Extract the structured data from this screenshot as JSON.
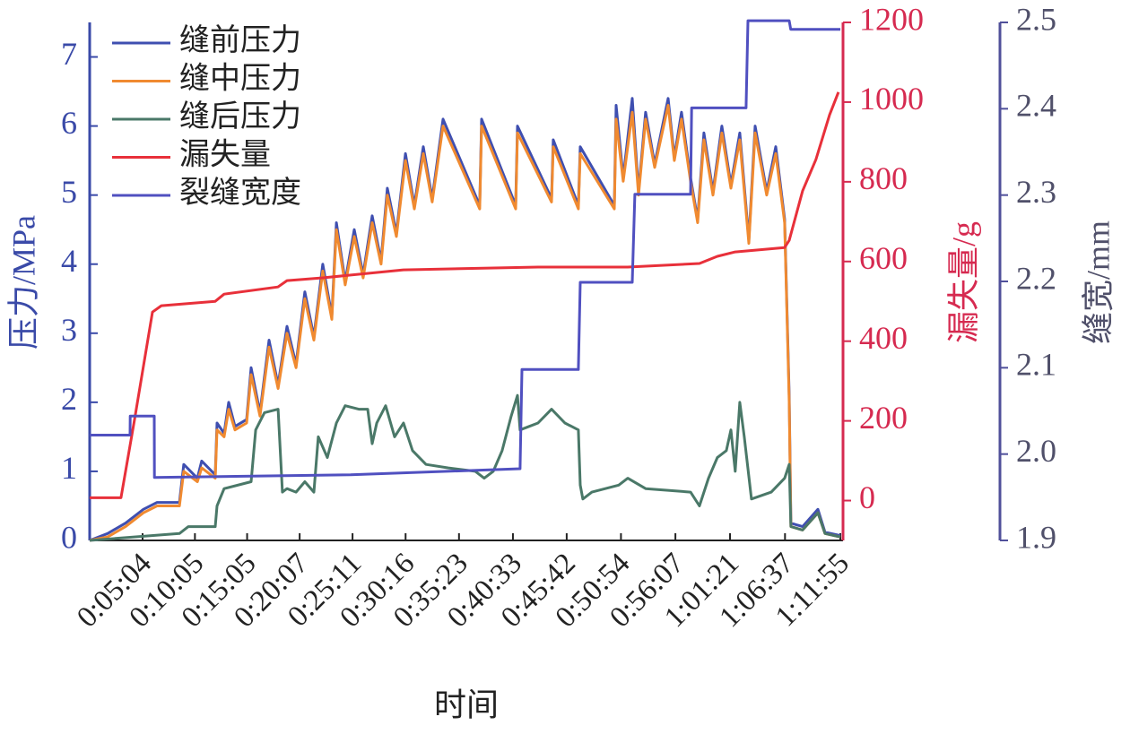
{
  "chart_data": {
    "type": "line",
    "xlabel": "时间",
    "ylabel": "压力/MPa",
    "y2label": "漏失量/g",
    "y3label": "缝宽/mm",
    "legend": "upper left",
    "xlim": [
      0,
      4315
    ],
    "xticks": [
      {
        "value": 304,
        "label": "0:05:04"
      },
      {
        "value": 605,
        "label": "0:10:05"
      },
      {
        "value": 905,
        "label": "0:15:05"
      },
      {
        "value": 1207,
        "label": "0:20:07"
      },
      {
        "value": 1511,
        "label": "0:25:11"
      },
      {
        "value": 1816,
        "label": "0:30:16"
      },
      {
        "value": 2123,
        "label": "0:35:23"
      },
      {
        "value": 2433,
        "label": "0:40:33"
      },
      {
        "value": 2742,
        "label": "0:45:42"
      },
      {
        "value": 3054,
        "label": "0:50:54"
      },
      {
        "value": 3367,
        "label": "0:56:07"
      },
      {
        "value": 3681,
        "label": "1:01:21"
      },
      {
        "value": 3997,
        "label": "1:06:37"
      },
      {
        "value": 4315,
        "label": "1:11:55"
      }
    ],
    "ylim": [
      0,
      7.5
    ],
    "yticks": [
      0,
      1,
      2,
      3,
      4,
      5,
      6,
      7
    ],
    "y2lim": [
      -100,
      1200
    ],
    "y2ticks": [
      0,
      200,
      400,
      600,
      800,
      1000,
      1200
    ],
    "y3lim": [
      1.9,
      2.5
    ],
    "y3ticks": [
      1.9,
      {
        "value": 2,
        "label": "2.0"
      },
      2.1,
      2.2,
      2.3,
      2.4,
      2.5
    ],
    "series": [
      {
        "name": "缝前压力",
        "color": "#3f4fb0",
        "axis": "y",
        "x": [
          0,
          103,
          206,
          309,
          387,
          516,
          541,
          619,
          644,
          722,
          732,
          773,
          799,
          835,
          902,
          928,
          979,
          1031,
          1083,
          1134,
          1186,
          1237,
          1289,
          1340,
          1392,
          1418,
          1469,
          1521,
          1572,
          1624,
          1675,
          1711,
          1763,
          1815,
          1866,
          1918,
          1969,
          2031,
          2242,
          2253,
          2449,
          2459,
          2655,
          2665,
          2809,
          2820,
          3016,
          3026,
          3067,
          3119,
          3155,
          3196,
          3248,
          3325,
          3361,
          3402,
          3454,
          3495,
          3531,
          3583,
          3634,
          3686,
          3737,
          3789,
          3825,
          3892,
          3944,
          3995,
          4021,
          4031,
          4098,
          4186,
          4227,
          4315
        ],
        "values": [
          0,
          0.1,
          0.25,
          0.45,
          0.55,
          0.55,
          1.1,
          0.9,
          1.15,
          0.95,
          1.7,
          1.55,
          2.0,
          1.65,
          1.75,
          2.5,
          1.85,
          2.9,
          2.25,
          3.1,
          2.55,
          3.6,
          2.95,
          4.0,
          3.25,
          4.6,
          3.75,
          4.5,
          3.85,
          4.7,
          4.05,
          5.1,
          4.45,
          5.6,
          4.85,
          5.7,
          4.95,
          6.1,
          4.85,
          6.1,
          4.85,
          6.0,
          4.95,
          5.8,
          4.85,
          5.7,
          4.85,
          6.3,
          5.25,
          6.4,
          5.05,
          6.2,
          5.45,
          6.4,
          5.55,
          6.2,
          5.25,
          4.65,
          5.9,
          5.05,
          6.0,
          5.15,
          5.9,
          4.35,
          6.0,
          5.05,
          5.7,
          4.65,
          2.1,
          0.25,
          0.2,
          0.45,
          0.12,
          0.07
        ]
      },
      {
        "name": "缝中压力",
        "color": "#f08a30",
        "axis": "y",
        "x": [
          0,
          103,
          206,
          309,
          387,
          516,
          541,
          619,
          644,
          722,
          732,
          773,
          799,
          835,
          902,
          928,
          979,
          1031,
          1083,
          1134,
          1186,
          1237,
          1289,
          1340,
          1392,
          1418,
          1469,
          1521,
          1572,
          1624,
          1675,
          1711,
          1763,
          1815,
          1866,
          1918,
          1969,
          2031,
          2242,
          2253,
          2449,
          2459,
          2655,
          2665,
          2809,
          2820,
          3016,
          3026,
          3067,
          3119,
          3155,
          3196,
          3248,
          3325,
          3361,
          3402,
          3454,
          3495,
          3531,
          3583,
          3634,
          3686,
          3737,
          3789,
          3825,
          3892,
          3944,
          3995,
          4021,
          4031,
          4098,
          4186,
          4227,
          4315
        ],
        "values": [
          0,
          0.05,
          0.2,
          0.4,
          0.5,
          0.5,
          1.0,
          0.85,
          1.05,
          0.9,
          1.6,
          1.5,
          1.9,
          1.6,
          1.7,
          2.4,
          1.8,
          2.8,
          2.2,
          3.0,
          2.5,
          3.5,
          2.9,
          3.9,
          3.2,
          4.5,
          3.7,
          4.4,
          3.8,
          4.6,
          4.0,
          5.0,
          4.4,
          5.5,
          4.8,
          5.6,
          4.9,
          6.0,
          4.8,
          6.0,
          4.8,
          5.9,
          4.9,
          5.7,
          4.8,
          5.6,
          4.8,
          6.1,
          5.2,
          6.2,
          5.0,
          6.1,
          5.4,
          6.3,
          5.5,
          6.1,
          5.2,
          4.6,
          5.8,
          5.0,
          5.9,
          5.1,
          5.8,
          4.3,
          5.9,
          5.0,
          5.6,
          4.6,
          2.0,
          0.2,
          0.15,
          0.4,
          0.1,
          0.05
        ]
      },
      {
        "name": "缝后压力",
        "color": "#4a7868",
        "axis": "y",
        "x": [
          0,
          516,
          567,
          722,
          732,
          773,
          928,
          954,
          1005,
          1083,
          1108,
          1134,
          1186,
          1237,
          1289,
          1314,
          1366,
          1418,
          1469,
          1547,
          1598,
          1624,
          1650,
          1701,
          1753,
          1804,
          1856,
          1933,
          2062,
          2217,
          2268,
          2320,
          2371,
          2423,
          2459,
          2474,
          2526,
          2577,
          2655,
          2732,
          2809,
          2820,
          2835,
          2887,
          3041,
          3093,
          3196,
          3454,
          3505,
          3557,
          3608,
          3660,
          3686,
          3711,
          3737,
          3763,
          3804,
          3918,
          3995,
          4021,
          4031,
          4098,
          4186,
          4227,
          4315
        ],
        "values": [
          0,
          0.1,
          0.2,
          0.2,
          0.5,
          0.75,
          0.85,
          1.6,
          1.85,
          1.9,
          0.7,
          0.75,
          0.7,
          0.85,
          0.7,
          1.5,
          1.2,
          1.7,
          1.95,
          1.9,
          1.9,
          1.4,
          1.7,
          1.95,
          1.5,
          1.7,
          1.3,
          1.1,
          1.05,
          1.0,
          0.9,
          1.0,
          1.3,
          1.8,
          2.1,
          1.6,
          1.65,
          1.7,
          1.9,
          1.7,
          1.6,
          0.8,
          0.6,
          0.7,
          0.8,
          0.9,
          0.75,
          0.7,
          0.5,
          0.9,
          1.2,
          1.3,
          1.6,
          1.0,
          2.0,
          1.5,
          0.6,
          0.7,
          0.9,
          1.1,
          0.2,
          0.15,
          0.4,
          0.1,
          0.05
        ]
      },
      {
        "name": "漏失量",
        "color": "#e8303a",
        "axis": "y2",
        "x": [
          0,
          180,
          258,
          361,
          412,
          722,
          773,
          1082,
          1134,
          1340,
          1804,
          2577,
          3093,
          3505,
          3608,
          3711,
          3995,
          4021,
          4098,
          4175,
          4253,
          4304
        ],
        "values": [
          7,
          7,
          203,
          473,
          489,
          500,
          518,
          536,
          552,
          559,
          579,
          586,
          586,
          595,
          613,
          624,
          635,
          653,
          777,
          856,
          968,
          1025
        ]
      },
      {
        "name": "裂缝宽度",
        "color": "#5050c0",
        "axis": "y3",
        "x": [
          0,
          232,
          233,
          371,
          372,
          1500,
          2474,
          2485,
          2809,
          2820,
          3119,
          3134,
          3454,
          3460,
          3773,
          3784,
          4021,
          4030,
          4315
        ],
        "values": [
          2.022,
          2.022,
          2.044,
          2.044,
          1.973,
          1.976,
          1.983,
          2.098,
          2.098,
          2.199,
          2.199,
          2.301,
          2.301,
          2.401,
          2.401,
          2.502,
          2.502,
          2.492,
          2.492
        ]
      }
    ]
  }
}
